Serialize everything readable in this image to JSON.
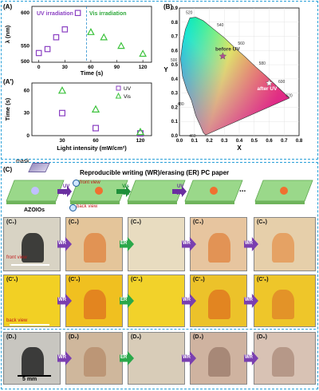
{
  "panelA": {
    "label": "(A)",
    "legend_uv": "UV irradiation",
    "legend_vis": "Vis irradiation",
    "ylabel": "λ (nm)",
    "xlabel": "Time (s)",
    "yticks": [
      "500",
      "550",
      "600"
    ],
    "xticks": [
      "0",
      "30",
      "60",
      "90",
      "120"
    ]
  },
  "panelA1": {
    "label": "(A')",
    "ylabel": "Time (s)",
    "xlabel": "Light intensity (mW/cm²)",
    "yticks": [
      "0",
      "30",
      "60"
    ],
    "xticks": [
      "30",
      "60",
      "120"
    ],
    "legend": [
      "UV",
      "Vis"
    ]
  },
  "panelB": {
    "label": "(B)",
    "ylabel": "Y",
    "xlabel": "X",
    "yticks": [
      "0.0",
      "0.1",
      "0.2",
      "0.3",
      "0.4",
      "0.5",
      "0.6",
      "0.7",
      "0.8",
      "0.9"
    ],
    "xticks": [
      "0.0",
      "0.1",
      "0.2",
      "0.3",
      "0.4",
      "0.5",
      "0.6",
      "0.7",
      "0.8"
    ],
    "wavelengths": [
      "520",
      "540",
      "560",
      "580",
      "600",
      "620",
      "500",
      "480",
      "460"
    ],
    "ann_before": "before UV",
    "ann_after": "after UV"
  },
  "panelC": {
    "label": "(C)",
    "mask": "mask",
    "title": "Reproducible writing (WR)/erasing (ER) PC paper",
    "front_view": "front view",
    "back_view": "back view",
    "azo": "AZOIOs",
    "front_view2": "front view",
    "back_view2": "back view",
    "uv": "UV",
    "wr": "WR",
    "vis": "Vis",
    "er": "ER",
    "ellipsis": "...",
    "row1": [
      "(C₁)",
      "(C₂)",
      "(C₃)",
      "(C₄)",
      "(C₅)"
    ],
    "row2": [
      "(C'₁)",
      "(C'₂)",
      "(C'₃)",
      "(C'₄)",
      "(C'₅)"
    ],
    "arrows": [
      "WR",
      "ER",
      "WR",
      "WR"
    ]
  },
  "panelD": {
    "row": [
      "(D₁)",
      "(D₂)",
      "(D₃)",
      "(D₄)",
      "(D₅)"
    ],
    "scale": "5 mm",
    "arrows": [
      "WR",
      "ER",
      "WR",
      "WR"
    ]
  },
  "chart_data": [
    {
      "type": "scatter",
      "title": "",
      "xlabel": "Time (s)",
      "ylabel": "λ (nm)",
      "xlim": [
        -8,
        130
      ],
      "ylim": [
        525,
        610
      ],
      "series": [
        {
          "name": "UV irradiation",
          "x": [
            0,
            10,
            20,
            30,
            45
          ],
          "y": [
            539,
            545,
            563,
            575,
            600
          ],
          "color": "#8a3fc2",
          "marker": "square"
        },
        {
          "name": "Vis irradiation",
          "x": [
            60,
            75,
            95,
            120
          ],
          "y": [
            571,
            563,
            550,
            538
          ],
          "color": "#3cc23c",
          "marker": "triangle"
        }
      ]
    },
    {
      "type": "scatter",
      "xlabel": "Light intensity (mW/cm²)",
      "ylabel": "Time (s)",
      "categories": [
        "30",
        "60",
        "120"
      ],
      "series": [
        {
          "name": "UV",
          "values": [
            30,
            10,
            3
          ],
          "color": "#8a3fc2",
          "marker": "square"
        },
        {
          "name": "Vis",
          "values": [
            60,
            35,
            5
          ],
          "color": "#3cc23c",
          "marker": "triangle"
        }
      ]
    },
    {
      "type": "scatter",
      "xlabel": "X",
      "ylabel": "Y",
      "xlim": [
        0,
        0.8
      ],
      "ylim": [
        0,
        0.9
      ],
      "series": [
        {
          "name": "before UV",
          "x": [
            0.29
          ],
          "y": [
            0.56
          ],
          "color": "#b05090",
          "marker": "star"
        },
        {
          "name": "after UV",
          "x": [
            0.6
          ],
          "y": [
            0.37
          ],
          "color": "#ffffff",
          "marker": "star"
        }
      ]
    }
  ]
}
